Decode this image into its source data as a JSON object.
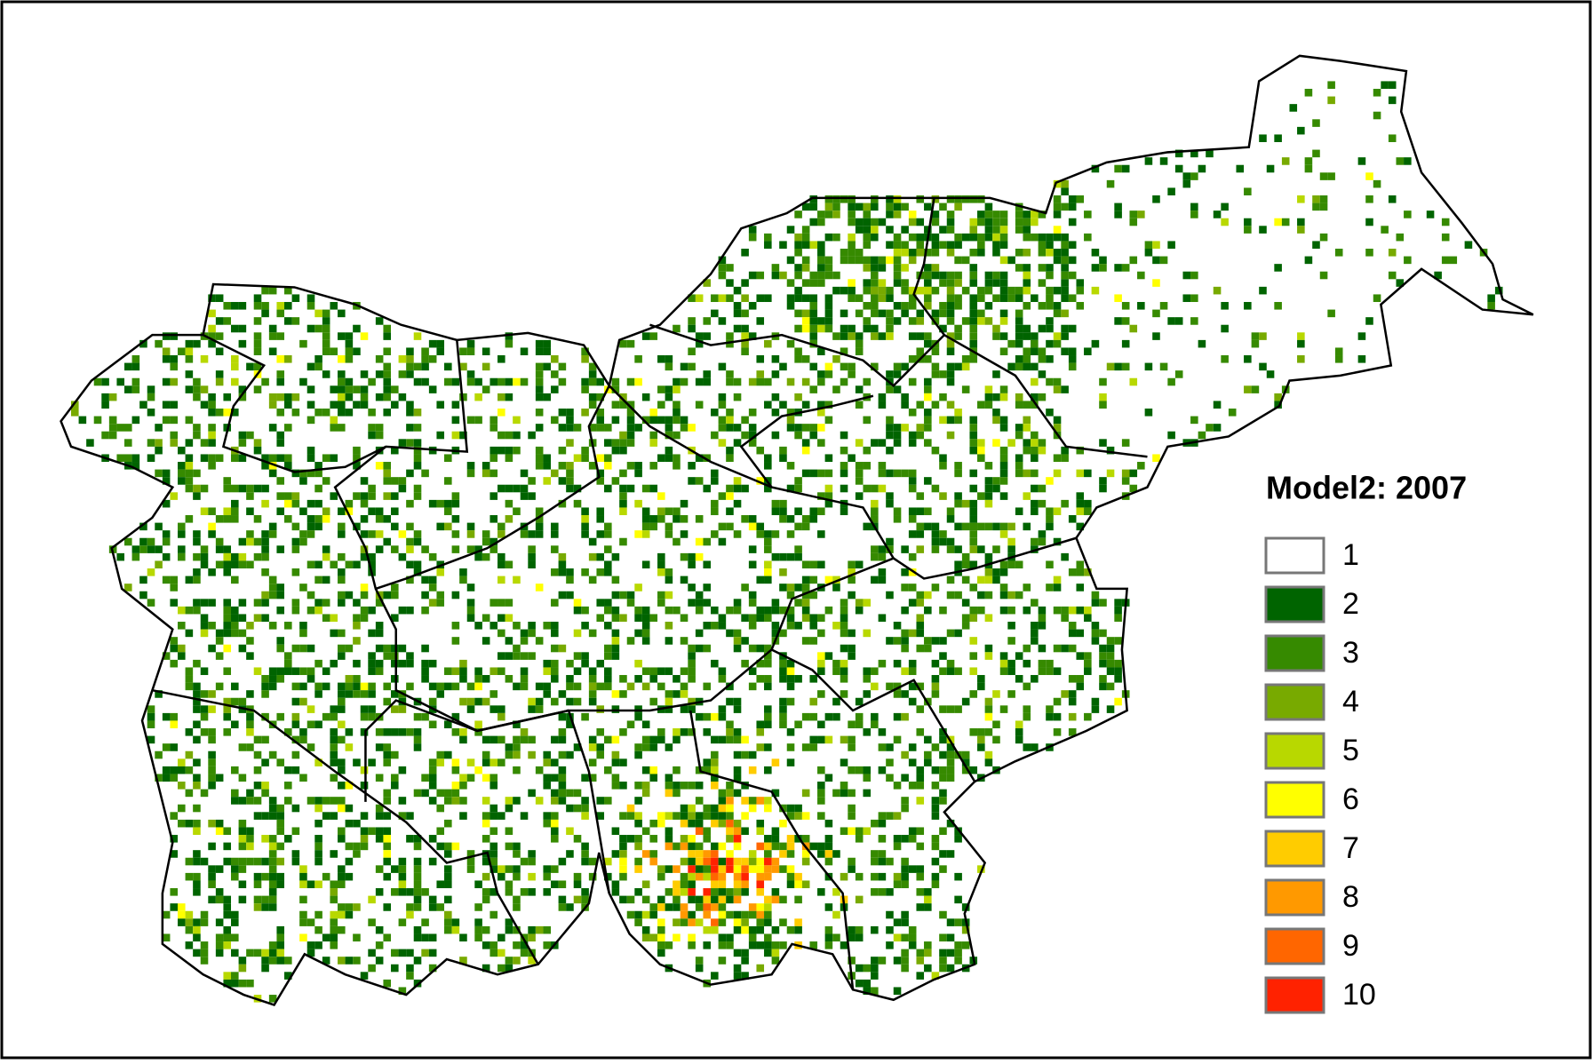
{
  "legend": {
    "title": "Model2: 2007",
    "items": [
      {
        "label": "1",
        "color": "#ffffff"
      },
      {
        "label": "2",
        "color": "#006400"
      },
      {
        "label": "3",
        "color": "#368a00"
      },
      {
        "label": "4",
        "color": "#78aa00"
      },
      {
        "label": "5",
        "color": "#b8d800"
      },
      {
        "label": "6",
        "color": "#ffff00"
      },
      {
        "label": "7",
        "color": "#ffcc00"
      },
      {
        "label": "8",
        "color": "#ff9900"
      },
      {
        "label": "9",
        "color": "#ff6600"
      },
      {
        "label": "10",
        "color": "#ff2200"
      }
    ]
  }
}
